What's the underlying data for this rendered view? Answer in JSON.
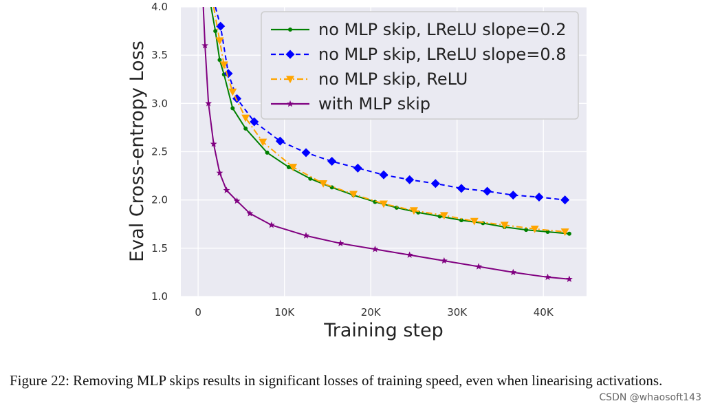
{
  "chart_data": {
    "type": "line",
    "xlabel": "Training step",
    "ylabel": "Eval Cross-entropy Loss",
    "xlim": [
      -2000,
      45000
    ],
    "ylim": [
      1.0,
      4.0
    ],
    "xticks": [
      0,
      10000,
      20000,
      30000,
      40000
    ],
    "xtick_labels": [
      "0",
      "10K",
      "20K",
      "30K",
      "40K"
    ],
    "yticks": [
      1.0,
      1.5,
      2.0,
      2.5,
      3.0,
      3.5,
      4.0
    ],
    "ytick_labels": [
      "1.0",
      "1.5",
      "2.0",
      "2.5",
      "3.0",
      "3.5",
      "4.0"
    ],
    "grid": true,
    "legend_position": "top-right",
    "series": [
      {
        "name": "no MLP skip, LReLU slope=0.2",
        "color": "#008000",
        "dash": "solid",
        "marker": "dot",
        "x": [
          1500,
          2000,
          2500,
          3000,
          4000,
          5500,
          8000,
          10500,
          13000,
          15500,
          18000,
          20500,
          23000,
          25500,
          28000,
          30500,
          33000,
          35500,
          38000,
          40500,
          43000
        ],
        "y": [
          4.0,
          3.75,
          3.45,
          3.3,
          2.95,
          2.74,
          2.49,
          2.34,
          2.22,
          2.13,
          2.05,
          1.98,
          1.92,
          1.87,
          1.83,
          1.79,
          1.76,
          1.72,
          1.69,
          1.67,
          1.65
        ]
      },
      {
        "name": "no MLP skip, LReLU slope=0.8",
        "color": "#0000ff",
        "dash": "dashed",
        "marker": "diamond",
        "x": [
          2000,
          2600,
          3500,
          4500,
          6500,
          9500,
          12500,
          15500,
          18500,
          21500,
          24500,
          27500,
          30500,
          33500,
          36500,
          39500,
          42500
        ],
        "y": [
          4.0,
          3.8,
          3.31,
          3.05,
          2.81,
          2.61,
          2.49,
          2.4,
          2.33,
          2.26,
          2.21,
          2.17,
          2.12,
          2.09,
          2.05,
          2.03,
          2.0
        ]
      },
      {
        "name": "no MLP skip, ReLU",
        "color": "#ffa500",
        "dash": "dashdot",
        "marker": "triangle-down",
        "x": [
          1800,
          2500,
          3000,
          4000,
          5500,
          7500,
          11000,
          14500,
          18000,
          21500,
          25000,
          28500,
          32000,
          35500,
          39000,
          42500
        ],
        "y": [
          4.0,
          3.65,
          3.4,
          3.12,
          2.85,
          2.6,
          2.34,
          2.17,
          2.06,
          1.96,
          1.89,
          1.84,
          1.78,
          1.74,
          1.7,
          1.67
        ]
      },
      {
        "name": "with MLP skip",
        "color": "#800080",
        "dash": "solid",
        "marker": "star",
        "x": [
          600,
          800,
          1200,
          1800,
          2500,
          3300,
          4500,
          6000,
          8500,
          12500,
          16500,
          20500,
          24500,
          28500,
          32500,
          36500,
          40500,
          43000
        ],
        "y": [
          4.0,
          3.6,
          3.0,
          2.58,
          2.28,
          2.1,
          1.99,
          1.86,
          1.74,
          1.63,
          1.55,
          1.49,
          1.43,
          1.37,
          1.31,
          1.25,
          1.2,
          1.18
        ]
      }
    ]
  },
  "caption": "Figure 22: Removing MLP skips results in significant losses of training speed, even when linearising activations.",
  "watermark": "CSDN @whaosoft143"
}
